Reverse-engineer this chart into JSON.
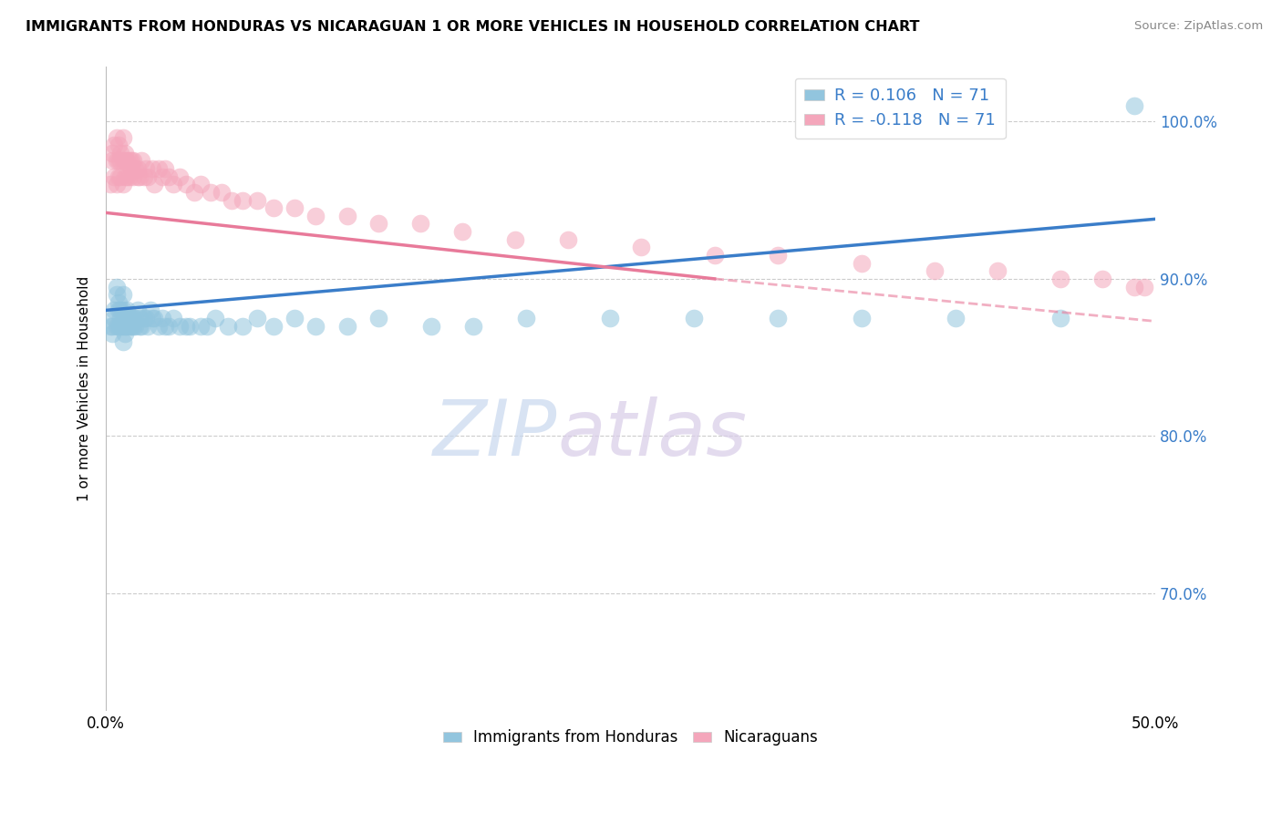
{
  "title": "IMMIGRANTS FROM HONDURAS VS NICARAGUAN 1 OR MORE VEHICLES IN HOUSEHOLD CORRELATION CHART",
  "source": "Source: ZipAtlas.com",
  "ylabel": "1 or more Vehicles in Household",
  "legend_blue_label": "R = 0.106   N = 71",
  "legend_pink_label": "R = -0.118   N = 71",
  "legend_bottom_blue": "Immigrants from Honduras",
  "legend_bottom_pink": "Nicaraguans",
  "blue_color": "#92c5de",
  "pink_color": "#f4a6bb",
  "blue_line_color": "#3a7dc9",
  "pink_line_color": "#e87a9a",
  "watermark_zip": "ZIP",
  "watermark_atlas": "atlas",
  "xlim": [
    0.0,
    0.5
  ],
  "ylim": [
    0.625,
    1.035
  ],
  "blue_scatter_x": [
    0.002,
    0.003,
    0.003,
    0.004,
    0.004,
    0.005,
    0.005,
    0.005,
    0.006,
    0.006,
    0.006,
    0.007,
    0.007,
    0.007,
    0.008,
    0.008,
    0.008,
    0.008,
    0.009,
    0.009,
    0.009,
    0.01,
    0.01,
    0.01,
    0.011,
    0.011,
    0.012,
    0.012,
    0.013,
    0.013,
    0.014,
    0.014,
    0.015,
    0.016,
    0.016,
    0.017,
    0.018,
    0.019,
    0.02,
    0.021,
    0.022,
    0.023,
    0.025,
    0.027,
    0.028,
    0.03,
    0.032,
    0.035,
    0.038,
    0.04,
    0.045,
    0.048,
    0.052,
    0.058,
    0.065,
    0.072,
    0.08,
    0.09,
    0.1,
    0.115,
    0.13,
    0.155,
    0.175,
    0.2,
    0.24,
    0.28,
    0.32,
    0.36,
    0.405,
    0.455,
    0.49
  ],
  "blue_scatter_y": [
    0.87,
    0.865,
    0.87,
    0.88,
    0.875,
    0.895,
    0.89,
    0.87,
    0.88,
    0.885,
    0.87,
    0.875,
    0.88,
    0.87,
    0.88,
    0.89,
    0.87,
    0.86,
    0.875,
    0.87,
    0.865,
    0.87,
    0.875,
    0.88,
    0.875,
    0.87,
    0.875,
    0.87,
    0.87,
    0.875,
    0.87,
    0.875,
    0.88,
    0.87,
    0.875,
    0.87,
    0.875,
    0.875,
    0.87,
    0.88,
    0.875,
    0.875,
    0.87,
    0.875,
    0.87,
    0.87,
    0.875,
    0.87,
    0.87,
    0.87,
    0.87,
    0.87,
    0.875,
    0.87,
    0.87,
    0.875,
    0.87,
    0.875,
    0.87,
    0.87,
    0.875,
    0.87,
    0.87,
    0.875,
    0.875,
    0.875,
    0.875,
    0.875,
    0.875,
    0.875,
    1.01
  ],
  "pink_scatter_x": [
    0.002,
    0.003,
    0.003,
    0.004,
    0.004,
    0.005,
    0.005,
    0.005,
    0.006,
    0.006,
    0.006,
    0.007,
    0.007,
    0.007,
    0.008,
    0.008,
    0.008,
    0.009,
    0.009,
    0.009,
    0.01,
    0.01,
    0.011,
    0.011,
    0.012,
    0.012,
    0.013,
    0.013,
    0.014,
    0.015,
    0.015,
    0.016,
    0.017,
    0.018,
    0.019,
    0.02,
    0.022,
    0.023,
    0.025,
    0.027,
    0.028,
    0.03,
    0.032,
    0.035,
    0.038,
    0.042,
    0.045,
    0.05,
    0.055,
    0.06,
    0.065,
    0.072,
    0.08,
    0.09,
    0.1,
    0.115,
    0.13,
    0.15,
    0.17,
    0.195,
    0.22,
    0.255,
    0.29,
    0.32,
    0.36,
    0.395,
    0.425,
    0.455,
    0.475,
    0.49,
    0.495
  ],
  "pink_scatter_y": [
    0.96,
    0.975,
    0.98,
    0.985,
    0.965,
    0.975,
    0.99,
    0.96,
    0.975,
    0.985,
    0.965,
    0.975,
    0.98,
    0.965,
    0.975,
    0.99,
    0.96,
    0.975,
    0.98,
    0.965,
    0.975,
    0.965,
    0.975,
    0.965,
    0.97,
    0.975,
    0.965,
    0.975,
    0.97,
    0.965,
    0.97,
    0.965,
    0.975,
    0.965,
    0.97,
    0.965,
    0.97,
    0.96,
    0.97,
    0.965,
    0.97,
    0.965,
    0.96,
    0.965,
    0.96,
    0.955,
    0.96,
    0.955,
    0.955,
    0.95,
    0.95,
    0.95,
    0.945,
    0.945,
    0.94,
    0.94,
    0.935,
    0.935,
    0.93,
    0.925,
    0.925,
    0.92,
    0.915,
    0.915,
    0.91,
    0.905,
    0.905,
    0.9,
    0.9,
    0.895,
    0.895
  ],
  "blue_line_x0": 0.0,
  "blue_line_y0": 0.88,
  "blue_line_x1": 0.5,
  "blue_line_y1": 0.938,
  "pink_line_solid_x0": 0.0,
  "pink_line_solid_y0": 0.942,
  "pink_line_solid_x1": 0.29,
  "pink_line_solid_y1": 0.9,
  "pink_line_dash_x0": 0.29,
  "pink_line_dash_y0": 0.9,
  "pink_line_dash_x1": 0.5,
  "pink_line_dash_y1": 0.873,
  "ytick_vals": [
    0.7,
    0.8,
    0.9,
    1.0
  ],
  "ytick_labels": [
    "70.0%",
    "80.0%",
    "90.0%",
    "100.0%"
  ]
}
